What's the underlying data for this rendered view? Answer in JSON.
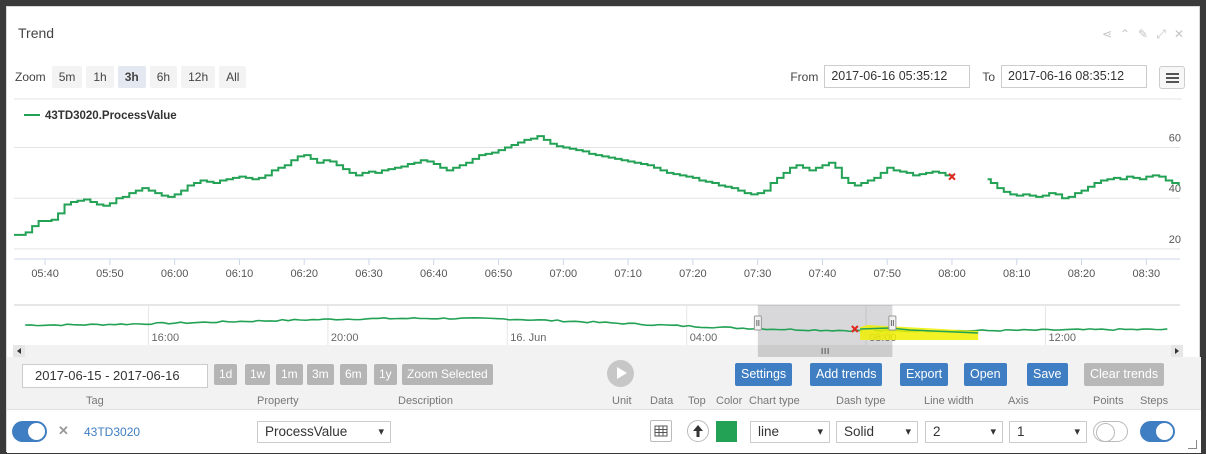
{
  "panel": {
    "title": "Trend"
  },
  "zoom": {
    "label": "Zoom",
    "buttons": [
      "5m",
      "1h",
      "3h",
      "6h",
      "12h",
      "All"
    ],
    "selected": "3h"
  },
  "range": {
    "from_label": "From",
    "from": "2017-06-16 05:35:12",
    "to_label": "To",
    "to": "2017-06-16 08:35:12"
  },
  "colors": {
    "series": "#23a256",
    "accent": "#3f7ec2",
    "highlight": "#f0f000",
    "gap_marker": "#e0261e"
  },
  "chart_data": {
    "type": "line",
    "step": true,
    "legend": "top-left",
    "grid": true,
    "series": [
      {
        "name": "43TD3020.ProcessValue",
        "segments": [
          [
            [
              "05:35:12",
              25.5
            ],
            [
              "05:37",
              26.5
            ],
            [
              "05:38",
              29
            ],
            [
              "05:39",
              31
            ],
            [
              "05:41",
              31.5
            ],
            [
              "05:42",
              34
            ],
            [
              "05:43",
              37.5
            ],
            [
              "05:44",
              38.5
            ],
            [
              "05:45",
              39
            ],
            [
              "05:46",
              39.5
            ],
            [
              "05:47",
              38.5
            ],
            [
              "05:48",
              37.5
            ],
            [
              "05:49",
              37
            ],
            [
              "05:50",
              38
            ],
            [
              "05:51",
              40
            ],
            [
              "05:52",
              40.5
            ],
            [
              "05:53",
              42
            ],
            [
              "05:54",
              43
            ],
            [
              "05:55",
              44
            ],
            [
              "05:56",
              43
            ],
            [
              "05:57",
              42
            ],
            [
              "05:58",
              41
            ],
            [
              "05:59",
              40.5
            ],
            [
              "06:00",
              41.5
            ],
            [
              "06:01",
              43
            ],
            [
              "06:02",
              45
            ],
            [
              "06:03",
              46
            ],
            [
              "06:04",
              47
            ],
            [
              "06:05",
              46.5
            ],
            [
              "06:06",
              46
            ],
            [
              "06:07",
              47
            ],
            [
              "06:08",
              47.5
            ],
            [
              "06:09",
              48
            ],
            [
              "06:10",
              48.5
            ],
            [
              "06:11",
              48
            ],
            [
              "06:12",
              47.5
            ],
            [
              "06:13",
              48
            ],
            [
              "06:14",
              49
            ],
            [
              "06:15",
              51
            ],
            [
              "06:16",
              52
            ],
            [
              "06:17",
              53
            ],
            [
              "06:18",
              55
            ],
            [
              "06:19",
              56.5
            ],
            [
              "06:20",
              57
            ],
            [
              "06:21",
              55.5
            ],
            [
              "06:22",
              54
            ],
            [
              "06:23",
              55
            ],
            [
              "06:24",
              54.5
            ],
            [
              "06:25",
              53
            ],
            [
              "06:26",
              51.5
            ],
            [
              "06:27",
              50
            ],
            [
              "06:28",
              49
            ],
            [
              "06:29",
              50
            ],
            [
              "06:30",
              50.5
            ],
            [
              "06:31",
              50
            ],
            [
              "06:32",
              51
            ],
            [
              "06:33",
              51.5
            ],
            [
              "06:34",
              52
            ],
            [
              "06:35",
              52.5
            ],
            [
              "06:36",
              53.5
            ],
            [
              "06:37",
              54
            ],
            [
              "06:38",
              55
            ],
            [
              "06:39",
              54.5
            ],
            [
              "06:40",
              53.5
            ],
            [
              "06:41",
              52
            ],
            [
              "06:42",
              51
            ],
            [
              "06:43",
              52
            ],
            [
              "06:44",
              53
            ],
            [
              "06:45",
              54
            ],
            [
              "06:46",
              55.5
            ],
            [
              "06:47",
              57
            ],
            [
              "06:48",
              57.5
            ],
            [
              "06:49",
              58
            ],
            [
              "06:50",
              59
            ],
            [
              "06:51",
              60
            ],
            [
              "06:52",
              61
            ],
            [
              "06:53",
              62
            ],
            [
              "06:54",
              63
            ],
            [
              "06:55",
              63.5
            ],
            [
              "06:56",
              64.5
            ],
            [
              "06:57",
              63
            ],
            [
              "06:58",
              61.5
            ],
            [
              "06:59",
              60.5
            ],
            [
              "07:00",
              60
            ],
            [
              "07:01",
              59.5
            ],
            [
              "07:02",
              59
            ],
            [
              "07:03",
              58.5
            ],
            [
              "07:04",
              57.5
            ],
            [
              "07:05",
              57
            ],
            [
              "07:06",
              56.5
            ],
            [
              "07:07",
              56
            ],
            [
              "07:08",
              55.5
            ],
            [
              "07:09",
              55
            ],
            [
              "07:10",
              54.5
            ],
            [
              "07:11",
              54
            ],
            [
              "07:12",
              53.5
            ],
            [
              "07:13",
              53
            ],
            [
              "07:14",
              52
            ],
            [
              "07:15",
              51
            ],
            [
              "07:16",
              50
            ],
            [
              "07:17",
              49.5
            ],
            [
              "07:18",
              49
            ],
            [
              "07:19",
              48.5
            ],
            [
              "07:20",
              48
            ],
            [
              "07:21",
              47
            ],
            [
              "07:22",
              46.5
            ],
            [
              "07:23",
              46
            ],
            [
              "07:24",
              45
            ],
            [
              "07:25",
              44.5
            ],
            [
              "07:26",
              44
            ],
            [
              "07:27",
              43
            ],
            [
              "07:28",
              42
            ],
            [
              "07:29",
              41.5
            ],
            [
              "07:30",
              42
            ],
            [
              "07:31",
              43
            ],
            [
              "07:32",
              46
            ],
            [
              "07:33",
              48
            ],
            [
              "07:34",
              50
            ],
            [
              "07:35",
              52
            ],
            [
              "07:36",
              53
            ],
            [
              "07:37",
              52
            ],
            [
              "07:38",
              51
            ],
            [
              "07:39",
              52
            ],
            [
              "07:40",
              53
            ],
            [
              "07:41",
              54
            ],
            [
              "07:42",
              52
            ],
            [
              "07:43",
              48
            ],
            [
              "07:44",
              46
            ],
            [
              "07:45",
              45
            ],
            [
              "07:46",
              46
            ],
            [
              "07:47",
              47
            ],
            [
              "07:48",
              48
            ],
            [
              "07:49",
              50
            ],
            [
              "07:50",
              52
            ],
            [
              "07:51",
              51
            ],
            [
              "07:52",
              50.5
            ],
            [
              "07:53",
              50
            ],
            [
              "07:54",
              49
            ],
            [
              "07:55",
              49.5
            ],
            [
              "07:56",
              50
            ],
            [
              "07:57",
              50.5
            ],
            [
              "07:58",
              50
            ],
            [
              "07:59",
              49
            ],
            [
              "08:00",
              48.5
            ]
          ],
          [
            [
              "08:05:30",
              47.5
            ],
            [
              "08:06",
              46
            ],
            [
              "08:07",
              44
            ],
            [
              "08:08",
              42.5
            ],
            [
              "08:09",
              41.5
            ],
            [
              "08:10",
              41
            ],
            [
              "08:11",
              41.5
            ],
            [
              "08:12",
              41
            ],
            [
              "08:13",
              40.5
            ],
            [
              "08:14",
              41
            ],
            [
              "08:15",
              42
            ],
            [
              "08:16",
              41.5
            ],
            [
              "08:17",
              40
            ],
            [
              "08:18",
              40.5
            ],
            [
              "08:19",
              42
            ],
            [
              "08:20",
              43
            ],
            [
              "08:21",
              44.5
            ],
            [
              "08:22",
              46
            ],
            [
              "08:23",
              47
            ],
            [
              "08:24",
              47.5
            ],
            [
              "08:25",
              48
            ],
            [
              "08:26",
              47.5
            ],
            [
              "08:27",
              48.5
            ],
            [
              "08:28",
              48
            ],
            [
              "08:29",
              47.5
            ],
            [
              "08:30",
              48.5
            ],
            [
              "08:31",
              49
            ],
            [
              "08:32",
              48.5
            ],
            [
              "08:33",
              47
            ],
            [
              "08:34",
              46
            ],
            [
              "08:35",
              45
            ]
          ]
        ]
      }
    ],
    "x_ticks": [
      "05:40",
      "05:50",
      "06:00",
      "06:10",
      "06:20",
      "06:30",
      "06:40",
      "06:50",
      "07:00",
      "07:10",
      "07:20",
      "07:30",
      "07:40",
      "07:50",
      "08:00",
      "08:10",
      "08:20",
      "08:30"
    ],
    "y_ticks": [
      20,
      40,
      60
    ],
    "ylim": [
      16,
      76
    ],
    "xlim": [
      "05:35:12",
      "08:35:12"
    ],
    "gap_marker": "08:00",
    "navigator": {
      "labels": [
        "16:00",
        "20:00",
        "16. Jun",
        "04:00",
        "08:00",
        "12:00"
      ],
      "label_times": [
        "06-15 16:00",
        "06-15 20:00",
        "06-16 00:00",
        "06-16 04:00",
        "06-16 08:00",
        "06-16 12:00"
      ],
      "xlim": [
        "06-15 13:00",
        "06-16 15:00"
      ],
      "selection": [
        "06-16 05:35:12",
        "06-16 08:35:12"
      ]
    }
  },
  "controls": {
    "date_range": "2017-06-15 - 2017-06-16",
    "range_buttons": [
      "1d",
      "1w",
      "1m",
      "3m",
      "6m",
      "1y"
    ],
    "zoom_selected": "Zoom Selected",
    "buttons": {
      "settings": "Settings",
      "add_trends": "Add trends",
      "export": "Export",
      "open": "Open",
      "save": "Save",
      "clear_trends": "Clear trends"
    }
  },
  "table": {
    "headers": [
      "Tag",
      "Property",
      "Description",
      "Unit",
      "Data",
      "Top",
      "Color",
      "Chart type",
      "Dash type",
      "Line width",
      "Axis",
      "Points",
      "Steps"
    ],
    "row": {
      "tag": "43TD3020",
      "property": "ProcessValue",
      "chart_type": "line",
      "dash_type": "Solid",
      "line_width": "2",
      "axis": "1"
    }
  }
}
